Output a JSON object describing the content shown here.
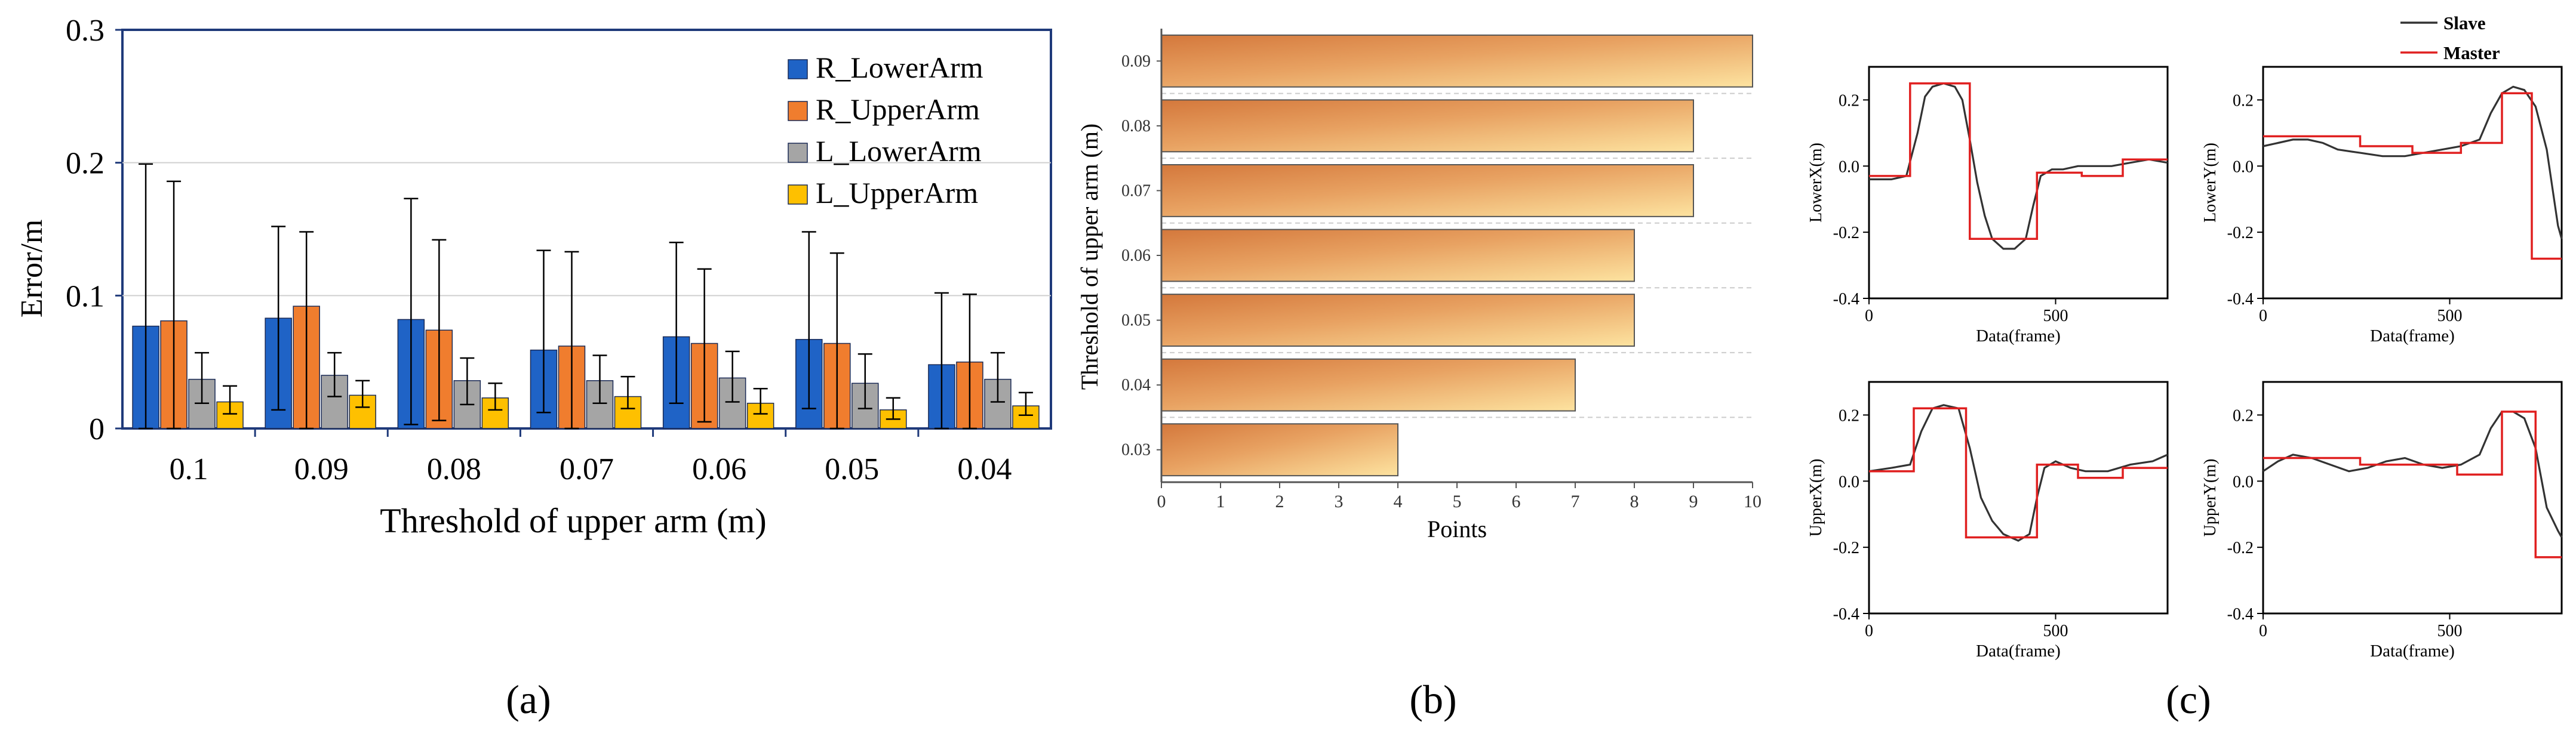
{
  "panel_labels": [
    "(a)",
    "(b)",
    "(c)"
  ],
  "chart_data": [
    {
      "type": "bar",
      "panel": "(a)",
      "xlabel": "Threshold of upper arm (m)",
      "ylabel": "Error/m",
      "ylim": [
        0,
        0.3
      ],
      "yticks": [
        "0",
        "0.1",
        "0.2",
        "0.3"
      ],
      "categories": [
        "0.1",
        "0.09",
        "0.08",
        "0.07",
        "0.06",
        "0.05",
        "0.04"
      ],
      "legend_position": "top-right",
      "series": [
        {
          "name": "R_LowerArm",
          "color": "#1F63C6",
          "values": [
            0.077,
            0.083,
            0.082,
            0.059,
            0.069,
            0.067,
            0.048
          ],
          "err_low": [
            0.077,
            0.069,
            0.079,
            0.047,
            0.05,
            0.052,
            0.048
          ],
          "err_high": [
            0.122,
            0.069,
            0.091,
            0.075,
            0.071,
            0.081,
            0.054
          ]
        },
        {
          "name": "R_UpperArm",
          "color": "#F07D2E",
          "values": [
            0.081,
            0.092,
            0.074,
            0.062,
            0.064,
            0.064,
            0.05
          ],
          "err_low": [
            0.081,
            0.092,
            0.068,
            0.062,
            0.059,
            0.064,
            0.05
          ],
          "err_high": [
            0.105,
            0.056,
            0.068,
            0.071,
            0.056,
            0.068,
            0.051
          ]
        },
        {
          "name": "L_LowerArm",
          "color": "#A5A5A5",
          "values": [
            0.037,
            0.04,
            0.036,
            0.036,
            0.038,
            0.034,
            0.037
          ],
          "err_low": [
            0.018,
            0.016,
            0.018,
            0.017,
            0.018,
            0.019,
            0.017
          ],
          "err_high": [
            0.02,
            0.017,
            0.017,
            0.019,
            0.02,
            0.022,
            0.02
          ]
        },
        {
          "name": "L_UpperArm",
          "color": "#FEC000",
          "values": [
            0.02,
            0.025,
            0.023,
            0.024,
            0.019,
            0.014,
            0.017
          ],
          "err_low": [
            0.009,
            0.009,
            0.009,
            0.009,
            0.008,
            0.007,
            0.007
          ],
          "err_high": [
            0.012,
            0.011,
            0.011,
            0.015,
            0.011,
            0.009,
            0.01
          ]
        }
      ]
    },
    {
      "type": "bar",
      "orientation": "horizontal",
      "panel": "(b)",
      "xlabel": "Points",
      "ylabel": "Threshold of upper arm (m)",
      "xlim": [
        0,
        10
      ],
      "xticks": [
        "0",
        "1",
        "2",
        "3",
        "4",
        "5",
        "6",
        "7",
        "8",
        "9",
        "10"
      ],
      "categories": [
        "0.09",
        "0.08",
        "0.07",
        "0.06",
        "0.05",
        "0.04",
        "0.03"
      ],
      "values": [
        10,
        9,
        9,
        8,
        8,
        7,
        4
      ],
      "gradient_colors": [
        "#D4783C",
        "#FDE3A0"
      ]
    },
    {
      "type": "line",
      "panel": "(c)",
      "legend": [
        {
          "name": "Slave",
          "color": "#333333"
        },
        {
          "name": "Master",
          "color": "#E02020"
        }
      ],
      "xlim": [
        0,
        800
      ],
      "ylim": [
        -0.4,
        0.3
      ],
      "xticks": [
        "0",
        "500"
      ],
      "yticks": [
        "0.2",
        "0.0",
        "-0.2",
        "-0.4"
      ],
      "subplots": [
        {
          "ylabel": "LowerX(m)",
          "xlabel": "Data(frame)",
          "master": {
            "x": [
              0,
              110,
              110,
              270,
              270,
              450,
              450,
              570,
              570,
              680,
              680,
              800
            ],
            "y": [
              -0.03,
              -0.03,
              0.25,
              0.25,
              -0.22,
              -0.22,
              -0.02,
              -0.02,
              -0.03,
              -0.03,
              0.02,
              0.02
            ]
          },
          "slave": {
            "x": [
              0,
              60,
              100,
              130,
              150,
              170,
              200,
              230,
              250,
              270,
              290,
              310,
              330,
              360,
              390,
              420,
              440,
              460,
              490,
              520,
              560,
              600,
              650,
              700,
              750,
              800
            ],
            "y": [
              -0.04,
              -0.04,
              -0.03,
              0.1,
              0.21,
              0.24,
              0.25,
              0.24,
              0.2,
              0.08,
              -0.05,
              -0.15,
              -0.22,
              -0.25,
              -0.25,
              -0.22,
              -0.12,
              -0.03,
              -0.01,
              -0.01,
              0.0,
              0.0,
              0.0,
              0.01,
              0.02,
              0.01
            ]
          }
        },
        {
          "ylabel": "LowerY(m)",
          "xlabel": "Data(frame)",
          "master": {
            "x": [
              0,
              120,
              120,
              260,
              260,
              400,
              400,
              530,
              530,
              640,
              640,
              720,
              720,
              800
            ],
            "y": [
              0.09,
              0.09,
              0.09,
              0.09,
              0.06,
              0.06,
              0.04,
              0.04,
              0.07,
              0.07,
              0.22,
              0.22,
              -0.28,
              -0.28
            ]
          },
          "slave": {
            "x": [
              0,
              40,
              80,
              120,
              160,
              200,
              260,
              320,
              380,
              430,
              480,
              530,
              580,
              610,
              640,
              670,
              700,
              730,
              760,
              790,
              800
            ],
            "y": [
              0.06,
              0.07,
              0.08,
              0.08,
              0.07,
              0.05,
              0.04,
              0.03,
              0.03,
              0.04,
              0.05,
              0.06,
              0.08,
              0.16,
              0.22,
              0.24,
              0.23,
              0.18,
              0.05,
              -0.18,
              -0.22
            ]
          }
        },
        {
          "ylabel": "UpperX(m)",
          "xlabel": "Data(frame)",
          "master": {
            "x": [
              0,
              120,
              120,
              260,
              260,
              450,
              450,
              560,
              560,
              680,
              680,
              800
            ],
            "y": [
              0.03,
              0.03,
              0.22,
              0.22,
              -0.17,
              -0.17,
              0.05,
              0.05,
              0.01,
              0.01,
              0.04,
              0.04
            ]
          },
          "slave": {
            "x": [
              0,
              60,
              110,
              140,
              170,
              200,
              240,
              270,
              300,
              330,
              360,
              400,
              430,
              450,
              470,
              500,
              540,
              580,
              640,
              700,
              760,
              800
            ],
            "y": [
              0.03,
              0.04,
              0.05,
              0.15,
              0.22,
              0.23,
              0.22,
              0.1,
              -0.05,
              -0.12,
              -0.16,
              -0.18,
              -0.16,
              -0.05,
              0.04,
              0.06,
              0.04,
              0.03,
              0.03,
              0.05,
              0.06,
              0.08
            ]
          }
        },
        {
          "ylabel": "UpperY(m)",
          "xlabel": "Data(frame)",
          "master": {
            "x": [
              0,
              260,
              260,
              520,
              520,
              640,
              640,
              730,
              730,
              800
            ],
            "y": [
              0.07,
              0.07,
              0.05,
              0.05,
              0.02,
              0.02,
              0.21,
              0.21,
              -0.23,
              -0.23
            ]
          },
          "slave": {
            "x": [
              0,
              40,
              80,
              130,
              180,
              230,
              280,
              330,
              380,
              430,
              480,
              530,
              580,
              610,
              640,
              670,
              700,
              730,
              760,
              790,
              800
            ],
            "y": [
              0.03,
              0.06,
              0.08,
              0.07,
              0.05,
              0.03,
              0.04,
              0.06,
              0.07,
              0.05,
              0.04,
              0.05,
              0.08,
              0.16,
              0.21,
              0.21,
              0.19,
              0.1,
              -0.08,
              -0.15,
              -0.17
            ]
          }
        }
      ]
    }
  ]
}
